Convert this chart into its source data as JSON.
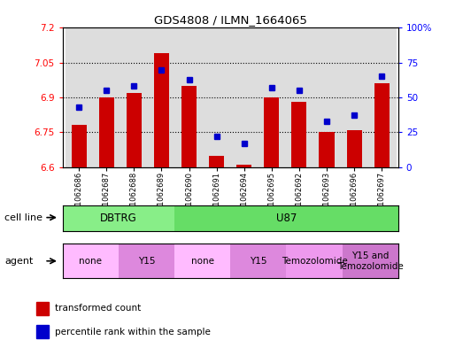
{
  "title": "GDS4808 / ILMN_1664065",
  "samples": [
    "GSM1062686",
    "GSM1062687",
    "GSM1062688",
    "GSM1062689",
    "GSM1062690",
    "GSM1062691",
    "GSM1062694",
    "GSM1062695",
    "GSM1062692",
    "GSM1062693",
    "GSM1062696",
    "GSM1062697"
  ],
  "transformed_count": [
    6.78,
    6.9,
    6.92,
    7.09,
    6.95,
    6.65,
    6.61,
    6.9,
    6.88,
    6.75,
    6.76,
    6.96
  ],
  "percentile_rank": [
    43,
    55,
    58,
    70,
    63,
    22,
    17,
    57,
    55,
    33,
    37,
    65
  ],
  "ylim_left": [
    6.6,
    7.2
  ],
  "ylim_right": [
    0,
    100
  ],
  "yticks_left": [
    6.6,
    6.75,
    6.9,
    7.05,
    7.2
  ],
  "yticks_right": [
    0,
    25,
    50,
    75,
    100
  ],
  "ytick_labels_left": [
    "6.6",
    "6.75",
    "6.9",
    "7.05",
    "7.2"
  ],
  "ytick_labels_right": [
    "0",
    "25",
    "50",
    "75",
    "100%"
  ],
  "bar_color": "#cc0000",
  "dot_color": "#0000cc",
  "cell_line_groups": [
    {
      "label": "DBTRG",
      "start": 0,
      "end": 3,
      "color": "#88ee88"
    },
    {
      "label": "U87",
      "start": 4,
      "end": 11,
      "color": "#66dd66"
    }
  ],
  "agent_groups": [
    {
      "label": "none",
      "start": 0,
      "end": 1,
      "color": "#ffbbff"
    },
    {
      "label": "Y15",
      "start": 2,
      "end": 3,
      "color": "#dd88dd"
    },
    {
      "label": "none",
      "start": 4,
      "end": 5,
      "color": "#ffbbff"
    },
    {
      "label": "Y15",
      "start": 6,
      "end": 7,
      "color": "#dd88dd"
    },
    {
      "label": "Temozolomide",
      "start": 8,
      "end": 9,
      "color": "#ee99ee"
    },
    {
      "label": "Y15 and\nTemozolomide",
      "start": 10,
      "end": 11,
      "color": "#cc77cc"
    }
  ],
  "cell_line_row_label": "cell line",
  "agent_row_label": "agent",
  "legend_bar_label": "transformed count",
  "legend_dot_label": "percentile rank within the sample",
  "tick_area_color": "#dddddd",
  "plot_bg": "#ffffff"
}
